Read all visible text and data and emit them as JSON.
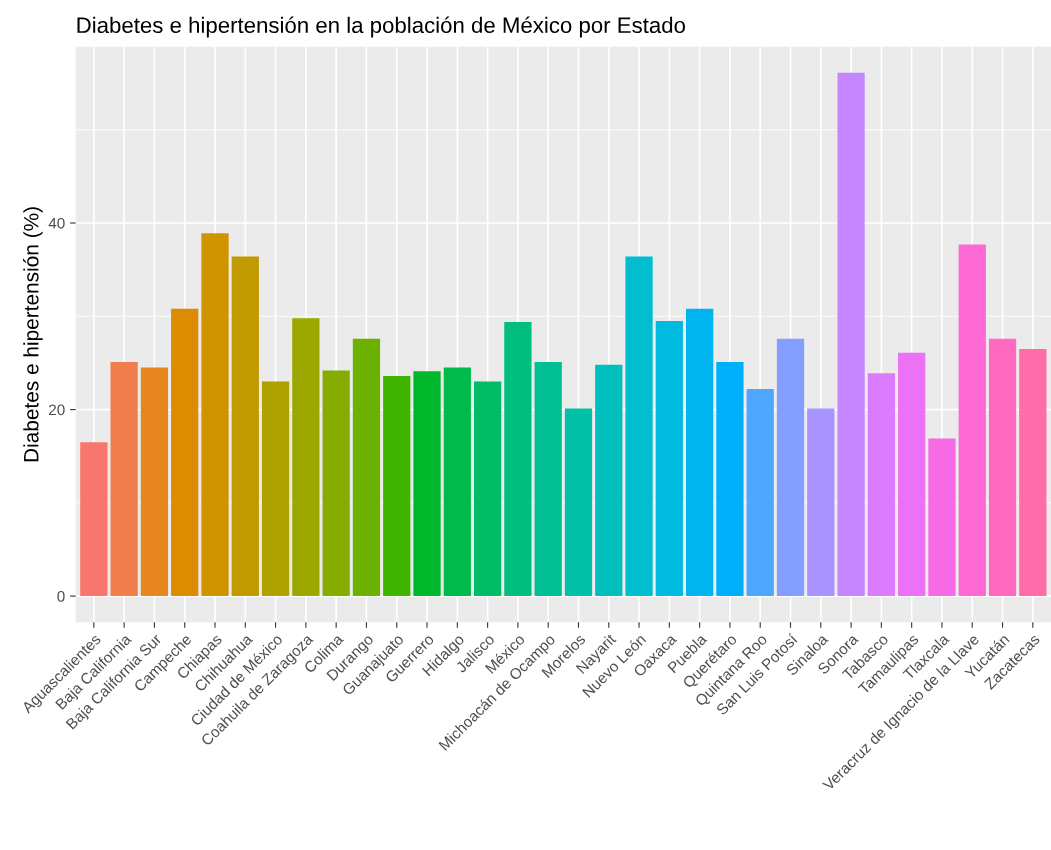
{
  "chart_data": {
    "type": "bar",
    "title": "Diabetes e hipertensión en la población de México por Estado",
    "ylabel": "Diabetes e hipertensión (%)",
    "categories": [
      "Aguascalientes",
      "Baja California",
      "Baja California Sur",
      "Campeche",
      "Chiapas",
      "Chihuahua",
      "Ciudad de México",
      "Coahuila de Zaragoza",
      "Colima",
      "Durango",
      "Guanajuato",
      "Guerrero",
      "Hidalgo",
      "Jalisco",
      "México",
      "Michoacán de Ocampo",
      "Morelos",
      "Nayarit",
      "Nuevo León",
      "Oaxaca",
      "Puebla",
      "Querétaro",
      "Quintana Roo",
      "San Luis Potosí",
      "Sinaloa",
      "Sonora",
      "Tabasco",
      "Tamaulipas",
      "Tlaxcala",
      "Veracruz de Ignacio de la Llave",
      "Yucatán",
      "Zacatecas"
    ],
    "values": [
      16.5,
      25.1,
      24.5,
      30.8,
      38.9,
      36.4,
      23.0,
      29.8,
      24.2,
      27.6,
      23.6,
      24.1,
      24.5,
      23.0,
      29.4,
      25.1,
      20.1,
      24.8,
      36.4,
      29.5,
      30.8,
      25.1,
      22.2,
      27.6,
      20.1,
      56.1,
      23.9,
      26.1,
      16.9,
      37.7,
      27.6,
      26.5
    ],
    "colors": [
      "#F8766D",
      "#F07E4C",
      "#E7851E",
      "#DC8C00",
      "#CF9400",
      "#C09A00",
      "#AFA100",
      "#9CA700",
      "#86AC00",
      "#6AB100",
      "#3FB500",
      "#00B82B",
      "#00BA4C",
      "#00BC66",
      "#00BE7D",
      "#00BF93",
      "#00C0A8",
      "#00BFBC",
      "#00BDCF",
      "#00BAE0",
      "#00B5EF",
      "#00AFFC",
      "#4EA7FF",
      "#849EFF",
      "#A893FF",
      "#C587FF",
      "#DB7CFF",
      "#EB72F5",
      "#F66BE5",
      "#FC69D3",
      "#FF69BE",
      "#FF6CA8"
    ],
    "ylim": [
      -2.8,
      58.9
    ],
    "yticks": [
      0,
      20,
      40
    ],
    "grid": true,
    "legend": false
  }
}
